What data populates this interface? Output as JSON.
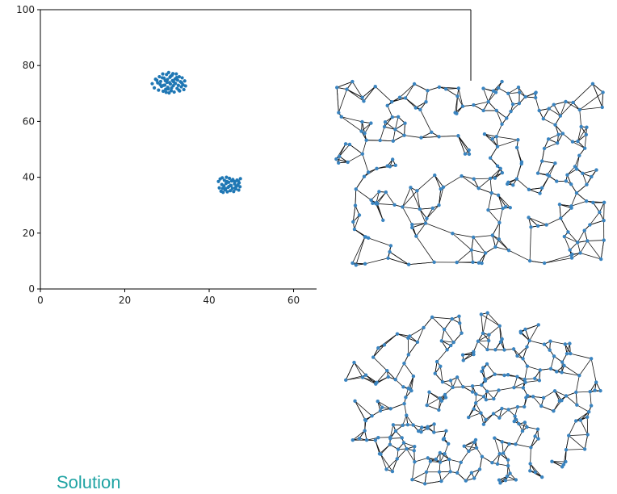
{
  "chart_data": [
    {
      "type": "scatter",
      "title": "",
      "xlabel": "",
      "ylabel": "",
      "xlim": [
        0,
        65
      ],
      "ylim": [
        0,
        100
      ],
      "xticks": [
        "0",
        "20",
        "40",
        "60"
      ],
      "yticks": [
        "0",
        "20",
        "40",
        "60",
        "80",
        "100"
      ],
      "grid": false,
      "marker_color": "#1f77b4",
      "series": [
        {
          "points": [
            [
              26.5,
              73.5
            ],
            [
              27.0,
              72.0
            ],
            [
              27.3,
              75.1
            ],
            [
              27.8,
              73.8
            ],
            [
              28.0,
              71.2
            ],
            [
              28.2,
              76.0
            ],
            [
              28.5,
              74.3
            ],
            [
              28.7,
              72.5
            ],
            [
              29.0,
              77.0
            ],
            [
              29.1,
              70.8
            ],
            [
              29.3,
              75.5
            ],
            [
              29.5,
              73.0
            ],
            [
              29.7,
              71.5
            ],
            [
              29.9,
              76.8
            ],
            [
              30.0,
              74.0
            ],
            [
              30.2,
              72.2
            ],
            [
              30.4,
              77.5
            ],
            [
              30.5,
              70.2
            ],
            [
              30.7,
              75.8
            ],
            [
              30.8,
              73.4
            ],
            [
              31.0,
              71.0
            ],
            [
              31.2,
              76.5
            ],
            [
              31.3,
              74.6
            ],
            [
              31.5,
              72.8
            ],
            [
              31.7,
              70.5
            ],
            [
              31.9,
              75.2
            ],
            [
              32.0,
              73.6
            ],
            [
              32.2,
              77.0
            ],
            [
              32.4,
              71.8
            ],
            [
              32.5,
              74.8
            ],
            [
              32.7,
              72.9
            ],
            [
              32.9,
              76.0
            ],
            [
              33.0,
              70.9
            ],
            [
              33.2,
              74.2
            ],
            [
              33.4,
              72.4
            ],
            [
              33.6,
              75.6
            ],
            [
              33.8,
              73.1
            ],
            [
              34.0,
              71.4
            ],
            [
              34.2,
              74.5
            ],
            [
              34.4,
              72.7
            ],
            [
              28.4,
              73.2
            ],
            [
              29.6,
              74.6
            ],
            [
              30.6,
              73.9
            ],
            [
              31.6,
              74.1
            ],
            [
              30.1,
              75.0
            ],
            [
              31.1,
              72.0
            ],
            [
              29.2,
              72.9
            ],
            [
              32.3,
              75.7
            ],
            [
              30.9,
              76.2
            ],
            [
              28.9,
              75.6
            ],
            [
              31.4,
              77.1
            ],
            [
              29.8,
              70.4
            ],
            [
              32.8,
              71.2
            ],
            [
              27.6,
              74.7
            ],
            [
              33.5,
              73.8
            ],
            [
              30.3,
              71.6
            ],
            [
              42.2,
              38.5
            ],
            [
              42.4,
              36.2
            ],
            [
              42.6,
              39.4
            ],
            [
              42.8,
              35.0
            ],
            [
              43.0,
              37.4
            ],
            [
              43.1,
              39.8
            ],
            [
              43.3,
              34.6
            ],
            [
              43.5,
              36.9
            ],
            [
              43.6,
              38.9
            ],
            [
              43.8,
              35.5
            ],
            [
              44.0,
              37.8
            ],
            [
              44.1,
              40.0
            ],
            [
              44.3,
              34.8
            ],
            [
              44.5,
              36.4
            ],
            [
              44.6,
              38.2
            ],
            [
              44.8,
              39.6
            ],
            [
              45.0,
              35.2
            ],
            [
              45.1,
              37.1
            ],
            [
              45.3,
              38.7
            ],
            [
              45.5,
              36.0
            ],
            [
              45.6,
              39.2
            ],
            [
              45.8,
              34.9
            ],
            [
              46.0,
              37.6
            ],
            [
              46.1,
              38.4
            ],
            [
              46.3,
              35.8
            ],
            [
              46.5,
              36.8
            ],
            [
              46.6,
              39.0
            ],
            [
              46.8,
              37.3
            ],
            [
              47.0,
              35.4
            ],
            [
              47.1,
              38.0
            ],
            [
              47.3,
              36.6
            ],
            [
              47.4,
              39.5
            ],
            [
              43.2,
              36.0
            ],
            [
              44.2,
              38.5
            ],
            [
              45.2,
              37.0
            ],
            [
              46.2,
              36.3
            ],
            [
              43.9,
              35.9
            ],
            [
              45.7,
              38.8
            ],
            [
              44.7,
              36.7
            ],
            [
              46.9,
              38.6
            ]
          ]
        }
      ]
    }
  ],
  "caption": "Solution"
}
